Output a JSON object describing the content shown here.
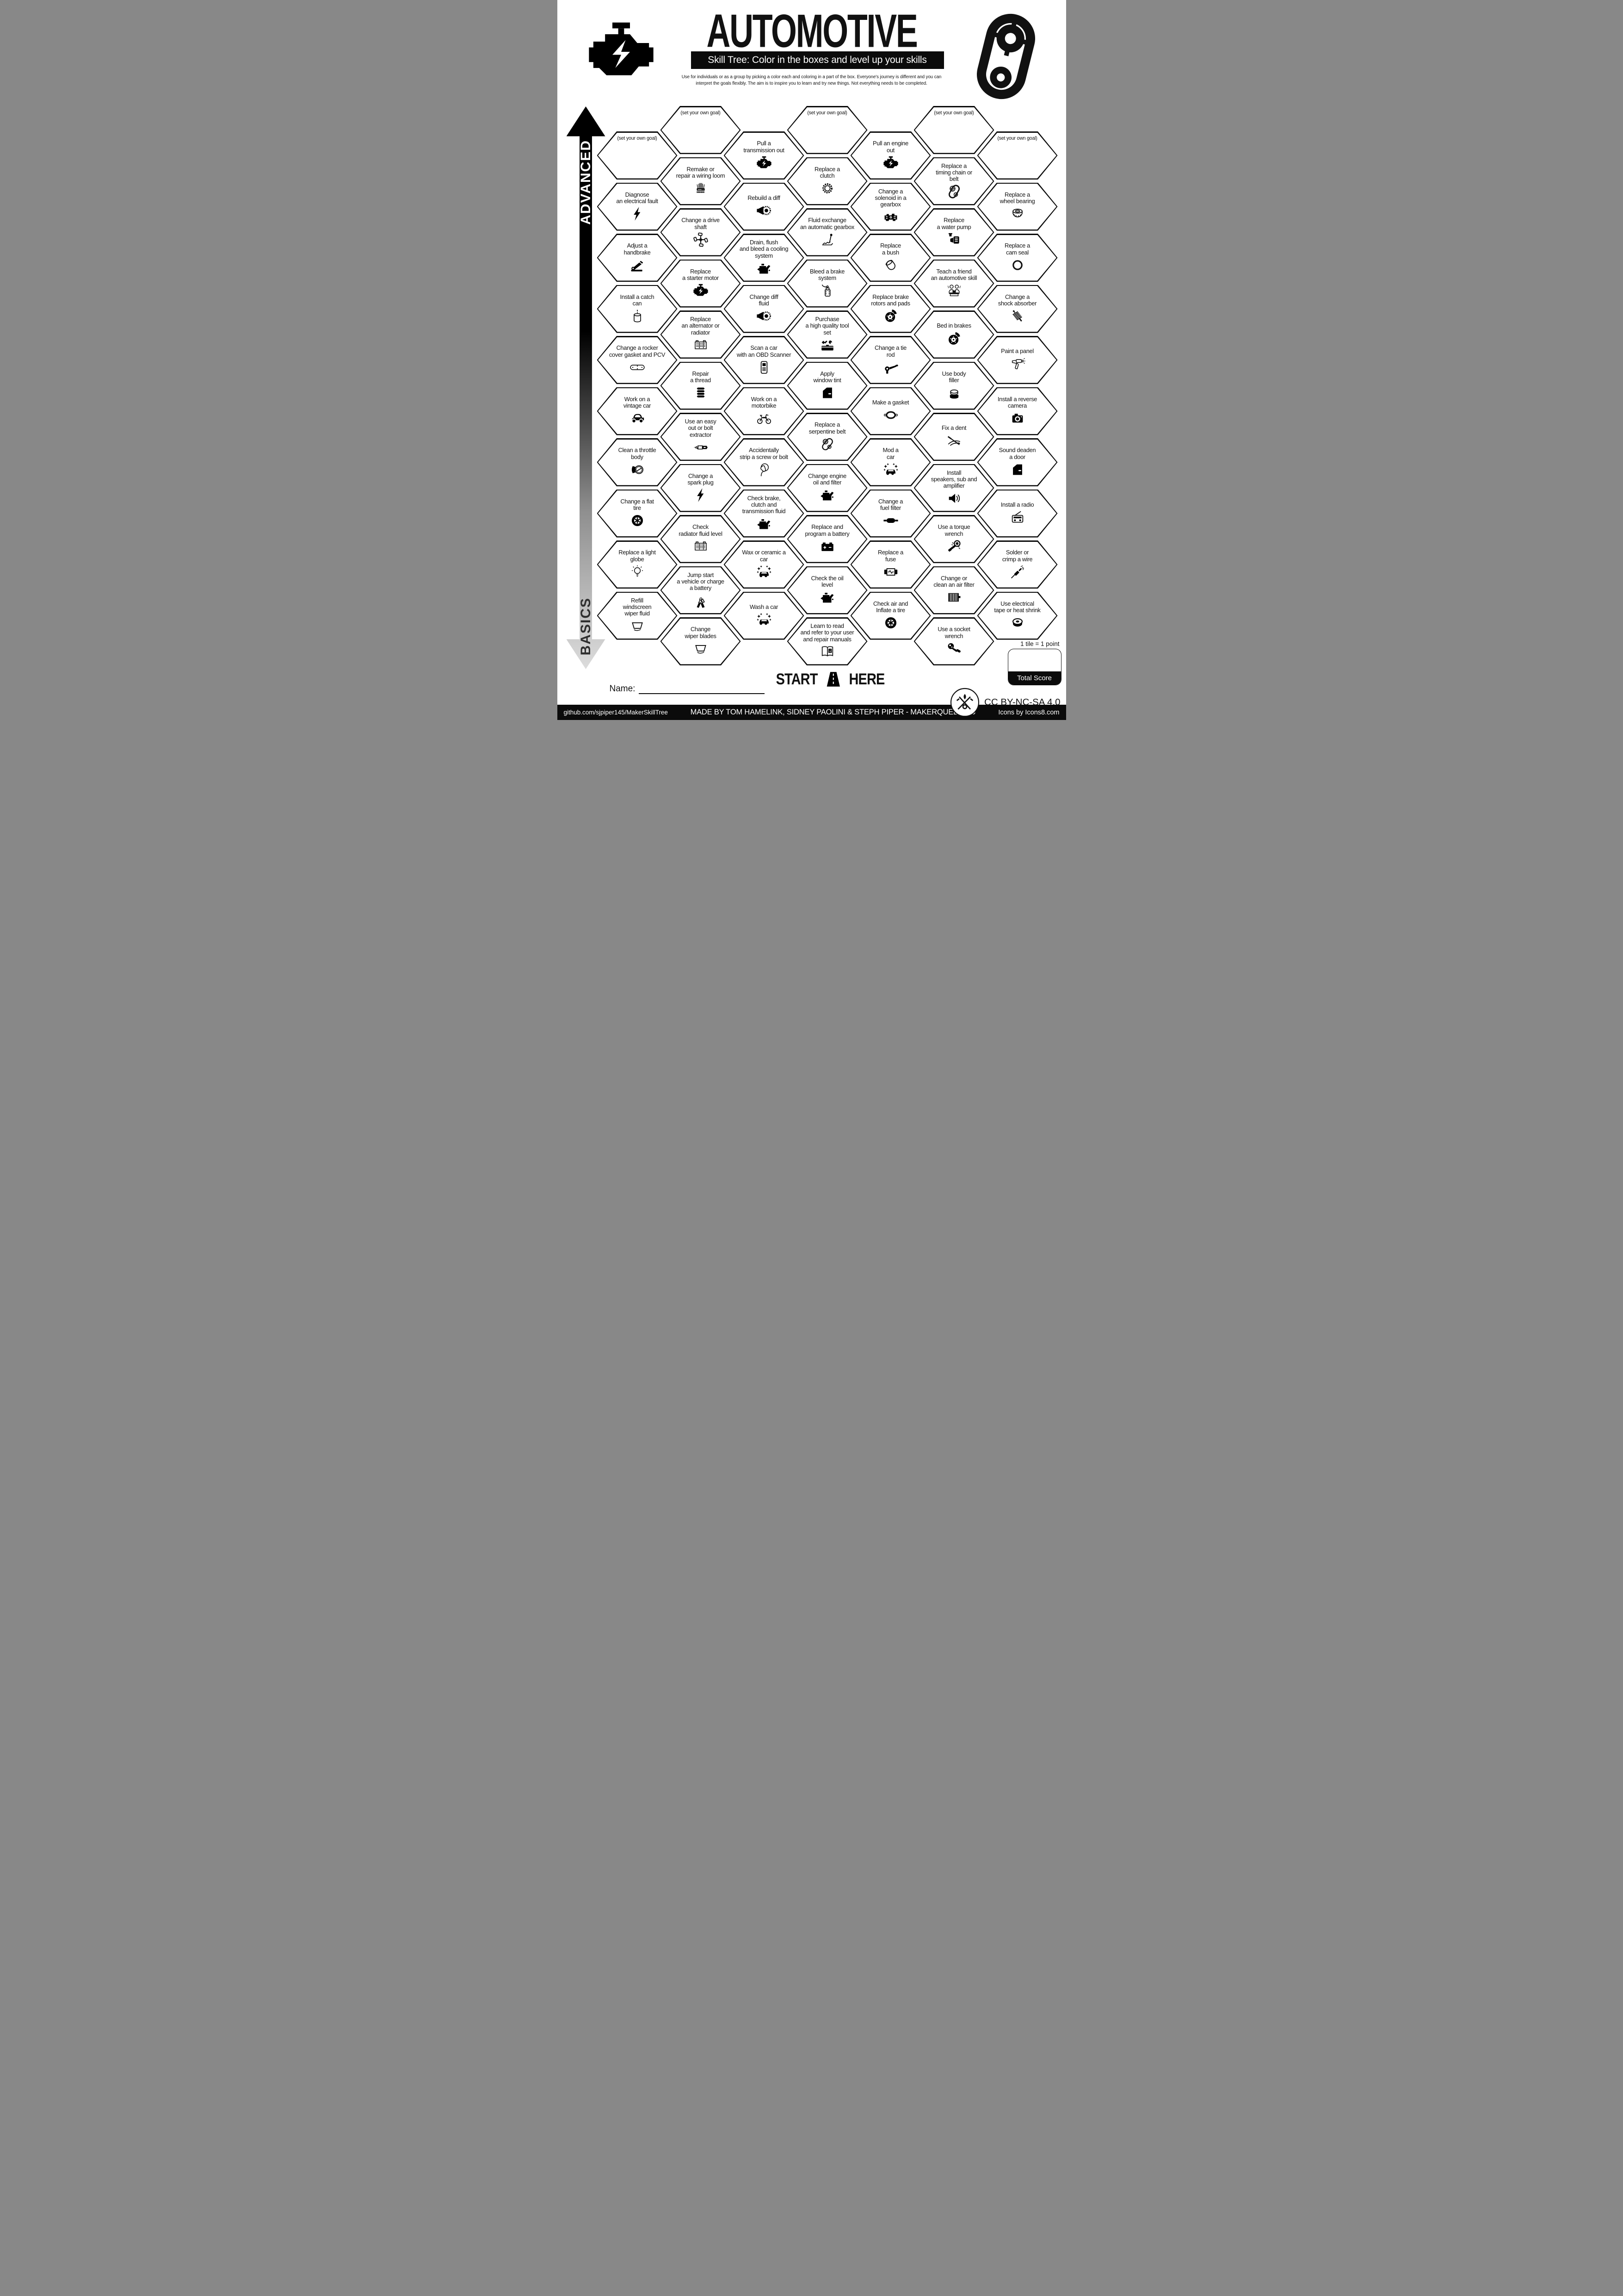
{
  "header": {
    "title": "AUTOMOTIVE",
    "subtitle": "Skill Tree:  Color in the boxes and level up your skills",
    "description": "Use for individuals or as a group by picking a color each and coloring in a part of the box.  Everyone's journey is different and you can\ninterpret the goals flexibly.  The aim is to inspire you to learn and try new things. Not everything needs to be completed.",
    "left_icon": "engine",
    "right_icon": "timing-cover"
  },
  "axis": {
    "advanced_label": "ADVANCED",
    "basics_label": "BASICS"
  },
  "goal_placeholder": "(set your own goal)",
  "start": {
    "start_label": "START",
    "here_label": "HERE",
    "icon": "road"
  },
  "name_label": "Name:",
  "score": {
    "tile_note": "1 tile = 1 point",
    "total_label": "Total Score"
  },
  "license": "CC BY-NC-SA 4.0",
  "branding": {
    "logo_icon": "makerqueen-logo"
  },
  "footer": {
    "left": "github.com/sjpiper145/MakerSkillTree",
    "center": "MADE BY TOM HAMELINK, SIDNEY PAOLINI & STEPH PIPER  -  MAKERQUEEN AU",
    "right": "Icons by Icons8.com"
  },
  "colors": {
    "ink": "#0b0b0b",
    "paper": "#ffffff",
    "arrow_fade": "#dcdcdc"
  },
  "hexes": [
    {
      "c": 0,
      "r": 0,
      "goal": true
    },
    {
      "c": 0,
      "r": 1,
      "label": "Diagnose\nan electrical fault",
      "icon": "lightning"
    },
    {
      "c": 0,
      "r": 2,
      "label": "Adjust a\nhandbrake",
      "icon": "handbrake"
    },
    {
      "c": 0,
      "r": 3,
      "label": "Install a catch\ncan",
      "icon": "catch-can"
    },
    {
      "c": 0,
      "r": 4,
      "label": "Change a rocker\ncover gasket and PCV",
      "icon": "rocker-gasket"
    },
    {
      "c": 0,
      "r": 5,
      "label": "Work on a\nvintage car",
      "icon": "vintage-car"
    },
    {
      "c": 0,
      "r": 6,
      "label": "Clean a throttle\nbody",
      "icon": "throttle-body"
    },
    {
      "c": 0,
      "r": 7,
      "label": "Change a flat\ntire",
      "icon": "tire"
    },
    {
      "c": 0,
      "r": 8,
      "label": "Replace a light\nglobe",
      "icon": "bulb"
    },
    {
      "c": 0,
      "r": 9,
      "label": "Refill\nwindscreen\nwiper fluid",
      "icon": "windscreen"
    },
    {
      "c": 1,
      "r": 0,
      "goal": true
    },
    {
      "c": 1,
      "r": 1,
      "label": "Remake or\nrepair a wiring loom",
      "icon": "wiring-loom"
    },
    {
      "c": 1,
      "r": 2,
      "label": "Change a drive\nshaft",
      "icon": "drive-shaft"
    },
    {
      "c": 1,
      "r": 3,
      "label": "Replace\na starter motor",
      "icon": "engine"
    },
    {
      "c": 1,
      "r": 4,
      "label": "Replace\nan alternator or\nradiator",
      "icon": "radiator"
    },
    {
      "c": 1,
      "r": 5,
      "label": "Repair\na thread",
      "icon": "thread-insert"
    },
    {
      "c": 1,
      "r": 6,
      "label": "Use an easy\nout or bolt\nextractor",
      "icon": "easy-out"
    },
    {
      "c": 1,
      "r": 7,
      "label": "Change a\nspark plug",
      "icon": "lightning"
    },
    {
      "c": 1,
      "r": 8,
      "label": "Check\nradiator fluid level",
      "icon": "radiator"
    },
    {
      "c": 1,
      "r": 9,
      "label": "Jump start\na vehicle or charge\na battery",
      "icon": "jumper-cables"
    },
    {
      "c": 1,
      "r": 10,
      "label": "Change\nwiper blades",
      "icon": "windscreen"
    },
    {
      "c": 2,
      "r": 0,
      "label": "Pull a\ntransmission out",
      "icon": "engine"
    },
    {
      "c": 2,
      "r": 1,
      "label": "Rebuild a diff",
      "icon": "diff"
    },
    {
      "c": 2,
      "r": 2,
      "label": "Drain, flush\nand bleed a cooling\nsystem",
      "icon": "oil-can"
    },
    {
      "c": 2,
      "r": 3,
      "label": "Change diff\nfluid",
      "icon": "diff"
    },
    {
      "c": 2,
      "r": 4,
      "label": "Scan a car\nwith an OBD Scanner",
      "icon": "obd-scanner"
    },
    {
      "c": 2,
      "r": 5,
      "label": "Work on a\nmotorbike",
      "icon": "motorbike"
    },
    {
      "c": 2,
      "r": 6,
      "label": "Accidentally\nstrip a screw or bolt",
      "icon": "facepalm"
    },
    {
      "c": 2,
      "r": 7,
      "label": "Check brake,\nclutch and\ntransmission fluid",
      "icon": "oil-can"
    },
    {
      "c": 2,
      "r": 8,
      "label": "Wax or ceramic a\ncar",
      "icon": "sparkle-car"
    },
    {
      "c": 2,
      "r": 9,
      "label": "Wash a car",
      "icon": "sparkle-car"
    },
    {
      "c": 3,
      "r": 0,
      "goal": true
    },
    {
      "c": 3,
      "r": 1,
      "label": "Replace a\nclutch",
      "icon": "clutch"
    },
    {
      "c": 3,
      "r": 2,
      "label": "Fluid exchange\nan automatic gearbox",
      "icon": "gear-shifter"
    },
    {
      "c": 3,
      "r": 3,
      "label": "Bleed a brake\nsystem",
      "icon": "bleed-bottle"
    },
    {
      "c": 3,
      "r": 4,
      "label": "Purchase\na high quality tool\nset",
      "icon": "toolbox"
    },
    {
      "c": 3,
      "r": 5,
      "label": "Apply\nwindow tint",
      "icon": "car-door"
    },
    {
      "c": 3,
      "r": 6,
      "label": "Replace a\nserpentine belt",
      "icon": "pulley-belt"
    },
    {
      "c": 3,
      "r": 7,
      "label": "Change engine\noil and filter",
      "icon": "oil-can"
    },
    {
      "c": 3,
      "r": 8,
      "label": "Replace and\nprogram a battery",
      "icon": "battery"
    },
    {
      "c": 3,
      "r": 9,
      "label": "Check the oil\nlevel",
      "icon": "oil-can"
    },
    {
      "c": 3,
      "r": 10,
      "label": "Learn to read\nand refer to your user\nand repair manuals",
      "icon": "manual-book"
    },
    {
      "c": 4,
      "r": 0,
      "label": "Pull an engine\nout",
      "icon": "engine"
    },
    {
      "c": 4,
      "r": 1,
      "label": "Change a\nsolenoid in a\ngearbox",
      "icon": "solenoid"
    },
    {
      "c": 4,
      "r": 2,
      "label": "Replace\na bush",
      "icon": "bush"
    },
    {
      "c": 4,
      "r": 3,
      "label": "Replace brake\nrotors and pads",
      "icon": "brake-disc"
    },
    {
      "c": 4,
      "r": 4,
      "label": "Change a tie\nrod",
      "icon": "tie-rod"
    },
    {
      "c": 4,
      "r": 5,
      "label": "Make a gasket",
      "icon": "gasket"
    },
    {
      "c": 4,
      "r": 6,
      "label": "Mod a\ncar",
      "icon": "sparkle-car"
    },
    {
      "c": 4,
      "r": 7,
      "label": "Change a\nfuel filter",
      "icon": "fuel-filter"
    },
    {
      "c": 4,
      "r": 8,
      "label": "Replace a\nfuse",
      "icon": "fuse"
    },
    {
      "c": 4,
      "r": 9,
      "label": "Check air and\nInflate a tire",
      "icon": "tire"
    },
    {
      "c": 5,
      "r": 0,
      "goal": true
    },
    {
      "c": 5,
      "r": 1,
      "label": "Replace a\ntiming chain or\nbelt",
      "icon": "timing-chain"
    },
    {
      "c": 5,
      "r": 2,
      "label": "Replace\na water pump",
      "icon": "water-pump"
    },
    {
      "c": 5,
      "r": 3,
      "label": "Teach a friend\nan automotive skill",
      "icon": "teach"
    },
    {
      "c": 5,
      "r": 4,
      "label": "Bed in brakes",
      "icon": "brake-disc"
    },
    {
      "c": 5,
      "r": 5,
      "label": "Use body\nfiller",
      "icon": "filler-tub"
    },
    {
      "c": 5,
      "r": 6,
      "label": "Fix a dent",
      "icon": "dent-puller"
    },
    {
      "c": 5,
      "r": 7,
      "label": "Install\nspeakers, sub and\namplifier",
      "icon": "speaker"
    },
    {
      "c": 5,
      "r": 8,
      "label": "Use a torque\nwrench",
      "icon": "torque-wrench"
    },
    {
      "c": 5,
      "r": 9,
      "label": "Change or\nclean an air filter",
      "icon": "air-filter"
    },
    {
      "c": 5,
      "r": 10,
      "label": "Use a socket\nwrench",
      "icon": "socket-wrench"
    },
    {
      "c": 6,
      "r": 0,
      "goal": true
    },
    {
      "c": 6,
      "r": 1,
      "label": "Replace a\nwheel bearing",
      "icon": "wheel-bearing"
    },
    {
      "c": 6,
      "r": 2,
      "label": "Replace a\ncam seal",
      "icon": "cam-seal"
    },
    {
      "c": 6,
      "r": 3,
      "label": "Change a\nshock absorber",
      "icon": "shock"
    },
    {
      "c": 6,
      "r": 4,
      "label": "Paint a panel",
      "icon": "spray-gun"
    },
    {
      "c": 6,
      "r": 5,
      "label": "Install a reverse\ncamera",
      "icon": "camera"
    },
    {
      "c": 6,
      "r": 6,
      "label": "Sound deaden\na door",
      "icon": "car-door"
    },
    {
      "c": 6,
      "r": 7,
      "label": "Install a radio",
      "icon": "radio"
    },
    {
      "c": 6,
      "r": 8,
      "label": "Solder or\ncrimp a wire",
      "icon": "soldering-iron"
    },
    {
      "c": 6,
      "r": 9,
      "label": "Use electrical\ntape or heat shrink",
      "icon": "tape"
    }
  ]
}
